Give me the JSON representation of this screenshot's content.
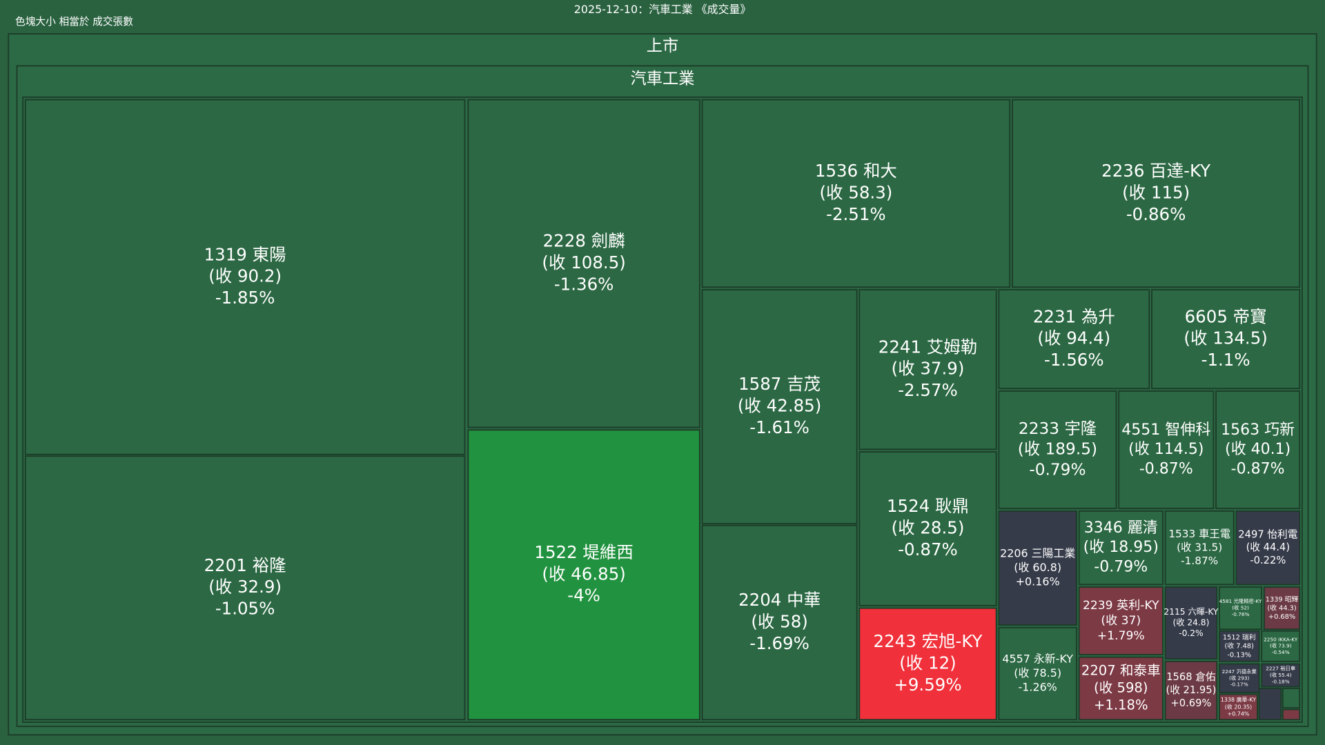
{
  "header": {
    "title": "2025-12-10：汽車工業 《成交量》",
    "size_note": "色塊大小 相當於 成交張數",
    "market": "上市",
    "industry": "汽車工業"
  },
  "tiles": [
    {
      "name": "1319 東陽",
      "close": "(收 90.2)",
      "change": "-1.85%",
      "color": "#2b6843"
    },
    {
      "name": "2201 裕隆",
      "close": "(收 32.9)",
      "change": "-1.05%",
      "color": "#2b6843"
    },
    {
      "name": "2228 劍麟",
      "close": "(收 108.5)",
      "change": "-1.36%",
      "color": "#2b6843"
    },
    {
      "name": "1522 堤維西",
      "close": "(收 46.85)",
      "change": "-4%",
      "color": "#21923f"
    },
    {
      "name": "1536 和大",
      "close": "(收 58.3)",
      "change": "-2.51%",
      "color": "#2b6843"
    },
    {
      "name": "2236 百達-KY",
      "close": "(收 115)",
      "change": "-0.86%",
      "color": "#2b6843"
    },
    {
      "name": "1587 吉茂",
      "close": "(收 42.85)",
      "change": "-1.61%",
      "color": "#2b6843"
    },
    {
      "name": "2204 中華",
      "close": "(收 58)",
      "change": "-1.69%",
      "color": "#2b6843"
    },
    {
      "name": "2241 艾姆勒",
      "close": "(收 37.9)",
      "change": "-2.57%",
      "color": "#2b6843"
    },
    {
      "name": "1524 耿鼎",
      "close": "(收 28.5)",
      "change": "-0.87%",
      "color": "#2b6843"
    },
    {
      "name": "2243 宏旭-KY",
      "close": "(收 12)",
      "change": "+9.59%",
      "color": "#f0303a"
    },
    {
      "name": "2231 為升",
      "close": "(收 94.4)",
      "change": "-1.56%",
      "color": "#2b6843"
    },
    {
      "name": "6605 帝寶",
      "close": "(收 134.5)",
      "change": "-1.1%",
      "color": "#2b6843"
    },
    {
      "name": "2233 宇隆",
      "close": "(收 189.5)",
      "change": "-0.79%",
      "color": "#2b6843"
    },
    {
      "name": "4551 智伸科",
      "close": "(收 114.5)",
      "change": "-0.87%",
      "color": "#2b6843"
    },
    {
      "name": "1563 巧新",
      "close": "(收 40.1)",
      "change": "-0.87%",
      "color": "#2b6843"
    },
    {
      "name": "2206 三陽工業",
      "close": "(收 60.8)",
      "change": "+0.16%",
      "color": "#363b4a"
    },
    {
      "name": "4557 永新-KY",
      "close": "(收 78.5)",
      "change": "-1.26%",
      "color": "#2b6843"
    },
    {
      "name": "3346 麗清",
      "close": "(收 18.95)",
      "change": "-0.79%",
      "color": "#2b6843"
    },
    {
      "name": "2239 英利-KY",
      "close": "(收 37)",
      "change": "+1.79%",
      "color": "#7c3a45"
    },
    {
      "name": "2207 和泰車",
      "close": "(收 598)",
      "change": "+1.18%",
      "color": "#7c3a45"
    },
    {
      "name": "1533 車王電",
      "close": "(收 31.5)",
      "change": "-1.87%",
      "color": "#2b6843"
    },
    {
      "name": "2497 怡利電",
      "close": "(收 44.4)",
      "change": "-0.22%",
      "color": "#363b4a"
    },
    {
      "name": "2115 六暉-KY",
      "close": "(收 24.8)",
      "change": "-0.2%",
      "color": "#363b4a"
    },
    {
      "name": "1568 倉佑",
      "close": "(收 21.95)",
      "change": "+0.69%",
      "color": "#6b3a45"
    },
    {
      "name": "4581 光隆精密-KY",
      "close": "(收 52)",
      "change": "-0.76%",
      "color": "#2b6843"
    },
    {
      "name": "1339 昭輝",
      "close": "(收 44.3)",
      "change": "+0.68%",
      "color": "#6b3a45"
    },
    {
      "name": "1512 瑞利",
      "close": "(收 7.48)",
      "change": "-0.13%",
      "color": "#363b4a"
    },
    {
      "name": "2250 IKKA-KY",
      "close": "(收 73.9)",
      "change": "-0.54%",
      "color": "#2b6843"
    },
    {
      "name": "2247 汎德永業",
      "close": "(收 293)",
      "change": "-0.17%",
      "color": "#363b4a"
    },
    {
      "name": "2227 裕日車",
      "close": "(收 55.4)",
      "change": "-0.18%",
      "color": "#363b4a"
    },
    {
      "name": "1338 廣華-KY",
      "close": "(收 20.35)",
      "change": "+0.74%",
      "color": "#7c3a45"
    }
  ]
}
